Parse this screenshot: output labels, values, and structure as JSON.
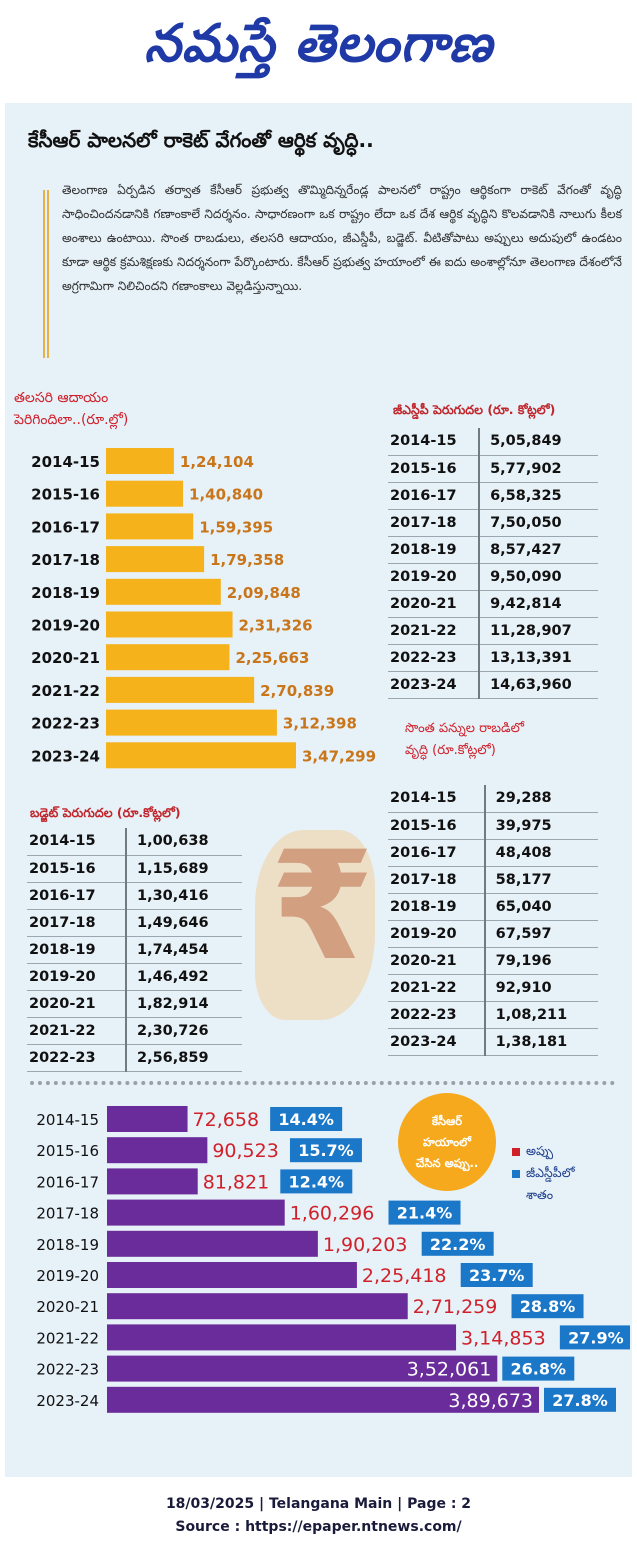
{
  "masthead": "నమస్తే తెలంగాణ",
  "headline": "కేసీఆర్ పాలనలో రాకెట్ వేగంతో ఆర్థిక వృద్ధి..",
  "intro": "తెలంగాణ ఏర్పడిన తర్వాత కేసీఆర్ ప్రభుత్వ తొమ్మిదిన్నరేండ్ల పాలనలో రాష్ట్రం ఆర్థికంగా రాకెట్ వేగంతో వృద్ధి సాధించిందనడానికి గణాంకాలే నిదర్శనం. సాధారణంగా ఒక రాష్ట్రం లేదా ఒక దేశ ఆర్థిక వృద్ధిని కొలవడానికి నాలుగు కీలక అంశాలు ఉంటాయి. సొంత రాబడులు, తలసరి ఆదాయం, జీఎస్డీపీ, బడ్జెట్. వీటితోపాటు అప్పులు అదుపులో ఉండటం కూడా ఆర్థిక క్రమశిక్షణకు నిదర్శనంగా పేర్కొంటారు. కేసీఆర్ ప్రభుత్వ హయాంలో ఈ ఐదు అంశాల్లోనూ తెలంగాణ దేశంలోనే అగ్రగామిగా నిలిచిందని గణాంకాలు వెల్లడిస్తున్నాయి.",
  "titles": {
    "per_capita_1": "తలసరి ఆదాయం",
    "per_capita_2": "పెరిగిందిలా..(రూ.ల్లో)",
    "gsdp": "జీఎస్డీపీ పెరుగుదల (రూ. కోట్లలో)",
    "own_tax_1": "సొంత పన్నుల రాబడిలో",
    "own_tax_2": "వృద్ధి (రూ.కోట్లలో)",
    "budget": "బడ్జెట్ పెరుగుదల (రూ.కోట్లలో)"
  },
  "bubble": [
    "కేసీఆర్",
    "హయాంలో",
    "చేసిన అప్పు.."
  ],
  "legend": {
    "debt": "అప్పు",
    "pct_1": "జీఎస్డీపీలో",
    "pct_2": "శాతం",
    "debt_color": "#d0212b",
    "pct_color": "#1b77c8"
  },
  "gsdp_table": [
    [
      "2014-15",
      "5,05,849"
    ],
    [
      "2015-16",
      "5,77,902"
    ],
    [
      "2016-17",
      "6,58,325"
    ],
    [
      "2017-18",
      "7,50,050"
    ],
    [
      "2018-19",
      "8,57,427"
    ],
    [
      "2019-20",
      "9,50,090"
    ],
    [
      "2020-21",
      "9,42,814"
    ],
    [
      "2021-22",
      "11,28,907"
    ],
    [
      "2022-23",
      "13,13,391"
    ],
    [
      "2023-24",
      "14,63,960"
    ]
  ],
  "own_tax_table": [
    [
      "2014-15",
      "29,288"
    ],
    [
      "2015-16",
      "39,975"
    ],
    [
      "2016-17",
      "48,408"
    ],
    [
      "2017-18",
      "58,177"
    ],
    [
      "2018-19",
      "65,040"
    ],
    [
      "2019-20",
      "67,597"
    ],
    [
      "2020-21",
      "79,196"
    ],
    [
      "2021-22",
      "92,910"
    ],
    [
      "2022-23",
      "1,08,211"
    ],
    [
      "2023-24",
      "1,38,181"
    ]
  ],
  "budget_table": [
    [
      "2014-15",
      "1,00,638"
    ],
    [
      "2015-16",
      "1,15,689"
    ],
    [
      "2016-17",
      "1,30,416"
    ],
    [
      "2017-18",
      "1,49,646"
    ],
    [
      "2018-19",
      "1,74,454"
    ],
    [
      "2019-20",
      "1,46,492"
    ],
    [
      "2020-21",
      "1,82,914"
    ],
    [
      "2021-22",
      "2,30,726"
    ],
    [
      "2022-23",
      "2,56,859"
    ]
  ],
  "chart_data": [
    {
      "type": "bar",
      "orientation": "horizontal",
      "title": "తలసరి ఆదాయం పెరిగిందిలా..(రూ.ల్లో)",
      "categories": [
        "2014-15",
        "2015-16",
        "2016-17",
        "2017-18",
        "2018-19",
        "2019-20",
        "2020-21",
        "2021-22",
        "2022-23",
        "2023-24"
      ],
      "values": [
        124104,
        140840,
        159395,
        179358,
        209848,
        231326,
        225663,
        270839,
        312398,
        347299
      ],
      "labels": [
        "1,24,104",
        "1,40,840",
        "1,59,395",
        "1,79,358",
        "2,09,848",
        "2,31,326",
        "2,25,663",
        "2,70,839",
        "3,12,398",
        "3,47,299"
      ],
      "bar_color": "#f5b21a",
      "label_color": "#c9761b"
    },
    {
      "type": "bar",
      "orientation": "horizontal",
      "categories": [
        "2014-15",
        "2015-16",
        "2016-17",
        "2017-18",
        "2018-19",
        "2019-20",
        "2020-21",
        "2021-22",
        "2022-23",
        "2023-24"
      ],
      "series": [
        {
          "name": "అప్పు",
          "values": [
            72658,
            90523,
            81821,
            160296,
            190203,
            225418,
            271259,
            314853,
            352061,
            389673
          ],
          "labels": [
            "72,658",
            "90,523",
            "81,821",
            "1,60,296",
            "1,90,203",
            "2,25,418",
            "2,71,259",
            "3,14,853",
            "3,52,061",
            "3,89,673"
          ]
        },
        {
          "name": "జీఎస్డీపీలో శాతం",
          "values": [
            14.4,
            15.7,
            12.4,
            21.4,
            22.2,
            23.7,
            28.8,
            27.9,
            26.8,
            27.8
          ],
          "labels": [
            "14.4%",
            "15.7%",
            "12.4%",
            "21.4%",
            "22.2%",
            "23.7%",
            "28.8%",
            "27.9%",
            "26.8%",
            "27.8%"
          ]
        }
      ],
      "bar_color": "#6a2c9a",
      "label_color": "#d0212b",
      "pct_color": "#1b77c8"
    }
  ],
  "footer": {
    "line1": "18/03/2025 | Telangana Main | Page : 2",
    "line2": "Source : https://epaper.ntnews.com/"
  }
}
